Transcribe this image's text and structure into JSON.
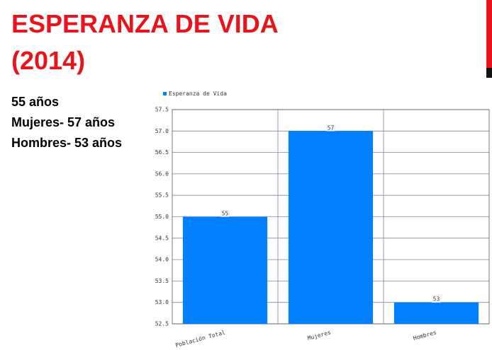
{
  "slide_title": [
    "ESPERANZA DE VIDA",
    "(2014)"
  ],
  "notes": [
    "55 años",
    "Mujeres- 57 años",
    "Hombres- 53 años"
  ],
  "chart_data": {
    "type": "bar",
    "categories": [
      "Población Total",
      "Mujeres",
      "Hombres"
    ],
    "series": [
      {
        "name": "Esperanza de Vida",
        "color": "#0080ff",
        "values": [
          55,
          57,
          53
        ]
      }
    ],
    "ylim": [
      52.5,
      57.5
    ],
    "yticks": [
      {
        "value": 52.5,
        "label": "52.5"
      },
      {
        "value": 53,
        "label": "53.0"
      },
      53.5,
      {
        "value": 54,
        "label": "54.0"
      },
      54.5,
      {
        "value": 55,
        "label": "55.0"
      },
      55.5,
      {
        "value": 56,
        "label": "56.0"
      },
      56.5,
      {
        "value": 57,
        "label": "57.0"
      },
      57.5
    ],
    "grid": true,
    "legend": "top-left"
  }
}
